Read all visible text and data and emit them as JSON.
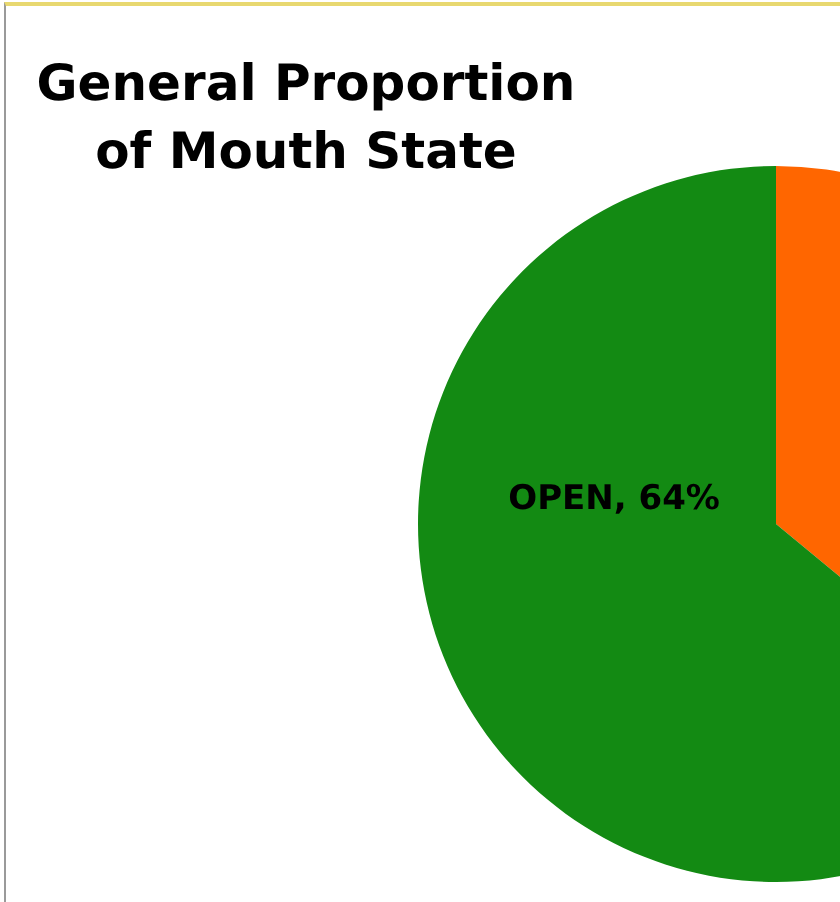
{
  "chart_data": {
    "type": "pie",
    "title": "General Proportion\nof Mouth State",
    "categories": [
      null,
      "OPEN"
    ],
    "values": [
      36,
      64
    ],
    "colors": [
      "#ff6600",
      "#138a13"
    ],
    "value_labels": [
      null,
      "64%"
    ],
    "legend": false
  }
}
